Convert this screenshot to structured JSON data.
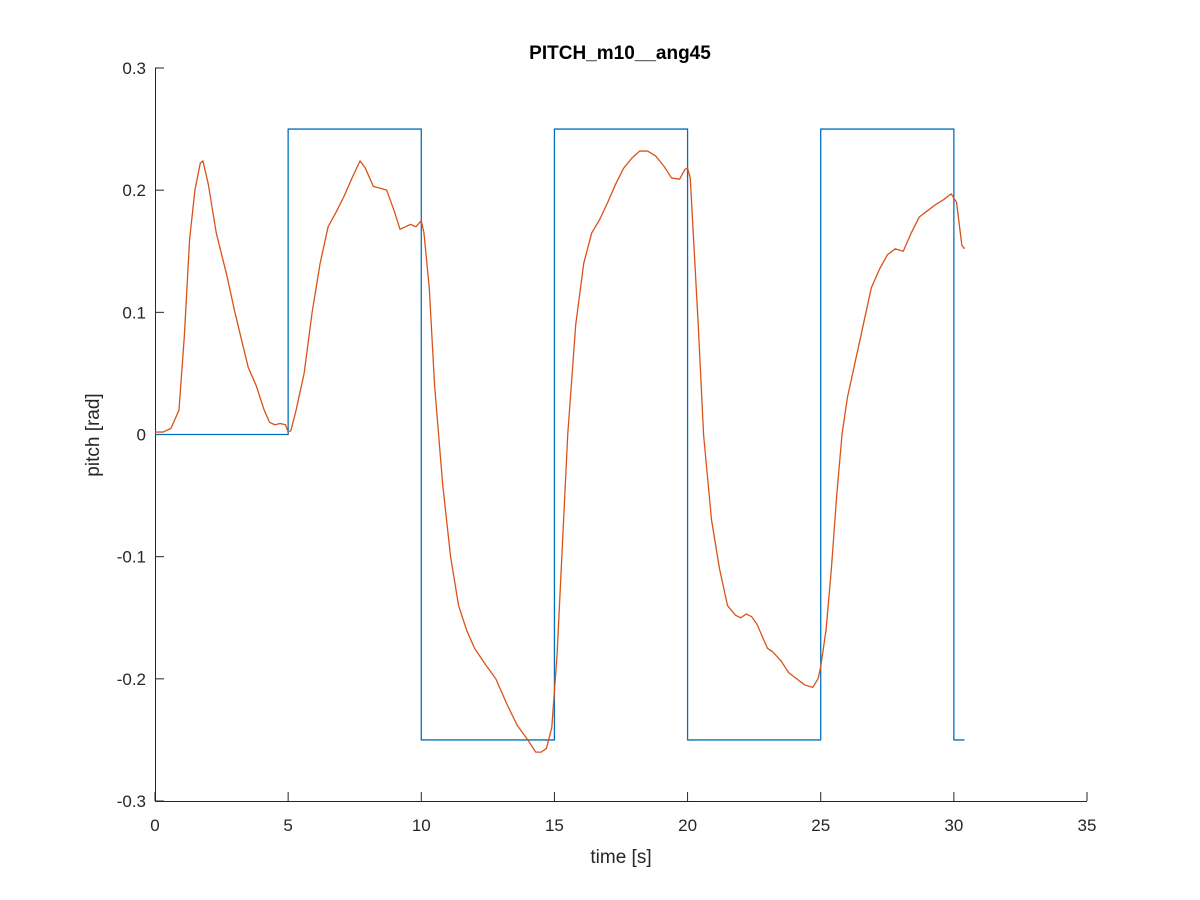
{
  "chart_data": {
    "type": "line",
    "title": "PITCH_m10__ang45",
    "xlabel": "time [s]",
    "ylabel": "pitch [rad]",
    "xlim": [
      0,
      35
    ],
    "ylim": [
      -0.3,
      0.3
    ],
    "xticks": [
      0,
      5,
      10,
      15,
      20,
      25,
      30,
      35
    ],
    "yticks": [
      -0.3,
      -0.2,
      -0.1,
      0,
      0.1,
      0.2,
      0.3
    ],
    "xtick_labels": [
      "0",
      "5",
      "10",
      "15",
      "20",
      "25",
      "30",
      "35"
    ],
    "ytick_labels": [
      "-0.3",
      "-0.2",
      "-0.1",
      "0",
      "0.1",
      "0.2",
      "0.3"
    ],
    "grid": false,
    "legend": "none",
    "series": [
      {
        "color": "#0072BD",
        "x": [
          0,
          5,
          5,
          10,
          10,
          15,
          15,
          20,
          20,
          25,
          25,
          30,
          30,
          30.4
        ],
        "y": [
          0,
          0,
          0.25,
          0.25,
          -0.25,
          -0.25,
          0.25,
          0.25,
          -0.25,
          -0.25,
          0.25,
          0.25,
          -0.25,
          -0.25
        ]
      },
      {
        "color": "#D95319",
        "x": [
          0,
          0.3,
          0.6,
          0.9,
          1.1,
          1.3,
          1.5,
          1.7,
          1.8,
          2.0,
          2.3,
          2.7,
          3.0,
          3.5,
          3.8,
          4.1,
          4.3,
          4.5,
          4.7,
          4.9,
          5.0,
          5.1,
          5.3,
          5.6,
          5.9,
          6.2,
          6.5,
          6.8,
          7.1,
          7.4,
          7.7,
          7.9,
          8.2,
          8.4,
          8.7,
          9.0,
          9.2,
          9.4,
          9.6,
          9.8,
          10.0,
          10.1,
          10.3,
          10.5,
          10.8,
          11.1,
          11.4,
          11.7,
          12.0,
          12.4,
          12.8,
          13.2,
          13.6,
          14.0,
          14.3,
          14.5,
          14.7,
          14.9,
          15.1,
          15.3,
          15.5,
          15.8,
          16.1,
          16.4,
          16.7,
          17.0,
          17.3,
          17.6,
          17.9,
          18.2,
          18.5,
          18.8,
          19.1,
          19.4,
          19.7,
          19.9,
          20.0,
          20.1,
          20.2,
          20.4,
          20.6,
          20.9,
          21.2,
          21.5,
          21.8,
          22.0,
          22.2,
          22.4,
          22.6,
          22.8,
          23.0,
          23.2,
          23.5,
          23.8,
          24.1,
          24.4,
          24.7,
          24.9,
          25.0,
          25.2,
          25.4,
          25.6,
          25.8,
          26.0,
          26.3,
          26.6,
          26.9,
          27.2,
          27.5,
          27.8,
          28.1,
          28.4,
          28.7,
          29.0,
          29.3,
          29.6,
          29.9,
          30.1,
          30.3,
          30.4
        ],
        "y": [
          0.002,
          0.002,
          0.005,
          0.02,
          0.08,
          0.16,
          0.2,
          0.222,
          0.224,
          0.205,
          0.165,
          0.13,
          0.1,
          0.055,
          0.04,
          0.02,
          0.01,
          0.008,
          0.009,
          0.008,
          0.002,
          0.003,
          0.02,
          0.05,
          0.1,
          0.14,
          0.17,
          0.182,
          0.195,
          0.21,
          0.224,
          0.218,
          0.203,
          0.202,
          0.2,
          0.182,
          0.168,
          0.17,
          0.172,
          0.17,
          0.175,
          0.165,
          0.12,
          0.04,
          -0.04,
          -0.1,
          -0.14,
          -0.16,
          -0.175,
          -0.188,
          -0.2,
          -0.22,
          -0.238,
          -0.25,
          -0.26,
          -0.26,
          -0.257,
          -0.24,
          -0.18,
          -0.09,
          0.0,
          0.09,
          0.14,
          0.165,
          0.176,
          0.19,
          0.205,
          0.218,
          0.226,
          0.232,
          0.232,
          0.228,
          0.22,
          0.21,
          0.209,
          0.217,
          0.218,
          0.21,
          0.17,
          0.09,
          0.0,
          -0.07,
          -0.11,
          -0.14,
          -0.148,
          -0.15,
          -0.147,
          -0.149,
          -0.155,
          -0.165,
          -0.175,
          -0.178,
          -0.185,
          -0.195,
          -0.2,
          -0.205,
          -0.207,
          -0.2,
          -0.19,
          -0.16,
          -0.11,
          -0.05,
          0.0,
          0.03,
          0.06,
          0.09,
          0.12,
          0.135,
          0.147,
          0.152,
          0.15,
          0.165,
          0.178,
          0.183,
          0.188,
          0.192,
          0.197,
          0.19,
          0.155,
          0.152
        ]
      }
    ]
  }
}
